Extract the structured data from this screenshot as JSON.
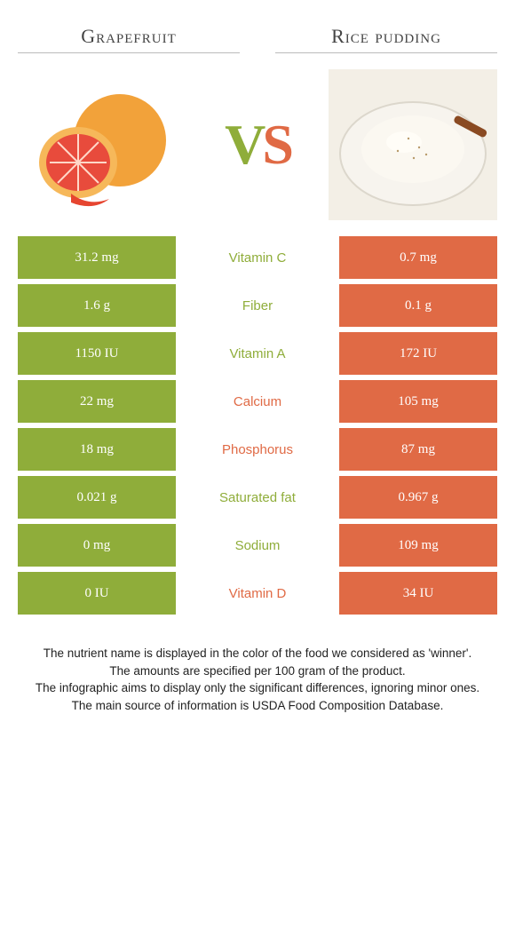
{
  "colors": {
    "left": "#8fad3a",
    "right": "#e06a45",
    "row_gap_bg": "#ffffff",
    "text_dark": "#333333"
  },
  "header": {
    "left_title": "Grapefruit",
    "right_title": "Rice pudding",
    "vs_v": "V",
    "vs_s": "S"
  },
  "rows": [
    {
      "nutrient": "Vitamin C",
      "left": "31.2 mg",
      "right": "0.7 mg",
      "winner": "left"
    },
    {
      "nutrient": "Fiber",
      "left": "1.6 g",
      "right": "0.1 g",
      "winner": "left"
    },
    {
      "nutrient": "Vitamin A",
      "left": "1150 IU",
      "right": "172 IU",
      "winner": "left"
    },
    {
      "nutrient": "Calcium",
      "left": "22 mg",
      "right": "105 mg",
      "winner": "right"
    },
    {
      "nutrient": "Phosphorus",
      "left": "18 mg",
      "right": "87 mg",
      "winner": "right"
    },
    {
      "nutrient": "Saturated fat",
      "left": "0.021 g",
      "right": "0.967 g",
      "winner": "left"
    },
    {
      "nutrient": "Sodium",
      "left": "0 mg",
      "right": "109 mg",
      "winner": "left"
    },
    {
      "nutrient": "Vitamin D",
      "left": "0 IU",
      "right": "34 IU",
      "winner": "right"
    }
  ],
  "footer": {
    "line1": "The nutrient name is displayed in the color of the food we considered as 'winner'.",
    "line2": "The amounts are specified per 100 gram of the product.",
    "line3": "The infographic aims to display only the significant differences, ignoring minor ones.",
    "line4": "The main source of information is USDA Food Composition Database."
  }
}
